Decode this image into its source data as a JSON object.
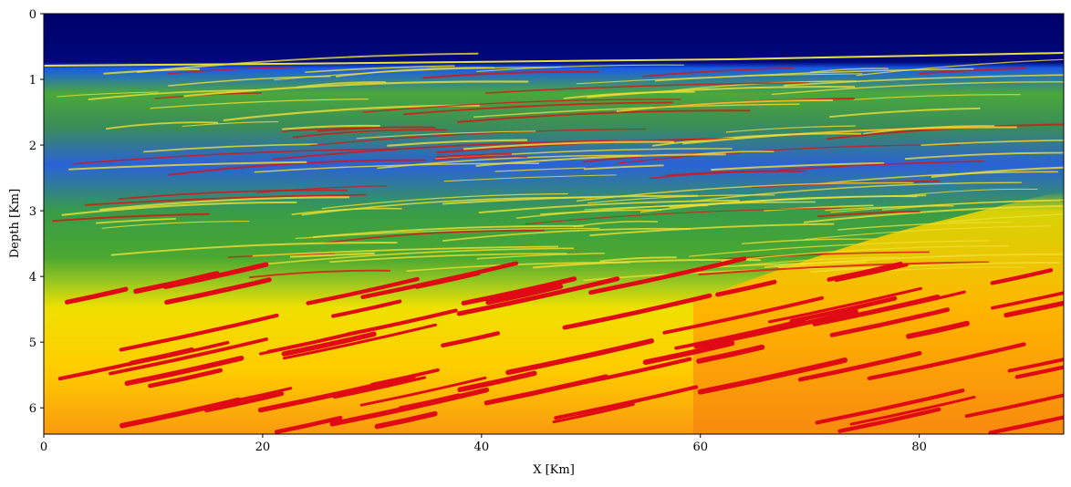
{
  "chart_data": {
    "type": "image",
    "xlabel": "X [Km]",
    "ylabel": "Depth [Km]",
    "xlim": [
      0,
      93.2
    ],
    "xticks": [
      0,
      20,
      40,
      60,
      80
    ],
    "ylim": [
      0,
      6.4
    ],
    "yticks": [
      0,
      1,
      2,
      3,
      4,
      5,
      6
    ],
    "y_inverted": true
  }
}
